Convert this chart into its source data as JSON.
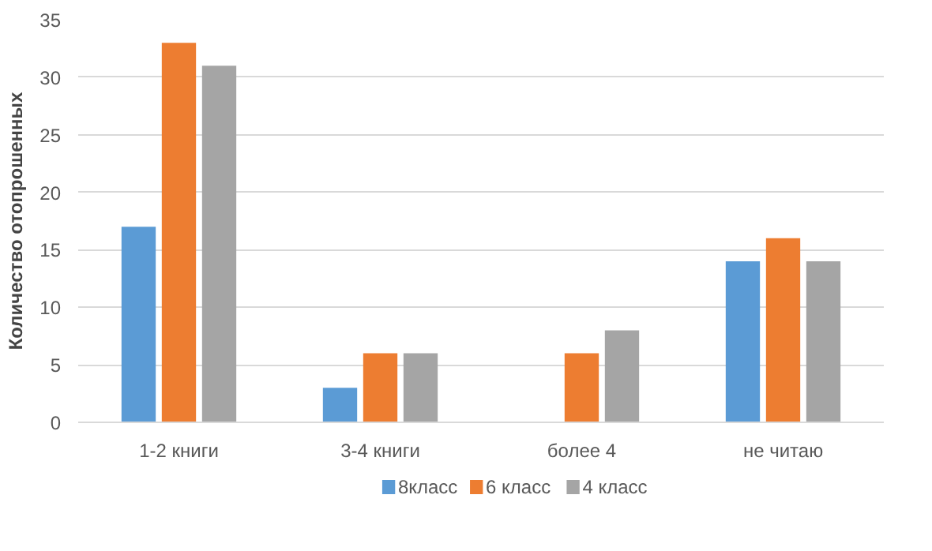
{
  "chart_data": {
    "type": "bar",
    "ylabel": "Количество отопрошенных",
    "categories": [
      "1-2 книги",
      "3-4 книги",
      "более 4",
      "не читаю"
    ],
    "series": [
      {
        "name": "8класс",
        "color": "#5b9bd5",
        "values": [
          17,
          3,
          null,
          14
        ]
      },
      {
        "name": "6 класс",
        "color": "#ed7d31",
        "values": [
          33,
          6,
          6,
          16
        ]
      },
      {
        "name": "4 класс",
        "color": "#a5a5a5",
        "values": [
          31,
          6,
          8,
          14
        ]
      }
    ],
    "ylim": [
      0,
      35
    ],
    "yticks": [
      0,
      5,
      10,
      15,
      20,
      25,
      30,
      35
    ],
    "grid": "y",
    "legend": "bottom"
  }
}
